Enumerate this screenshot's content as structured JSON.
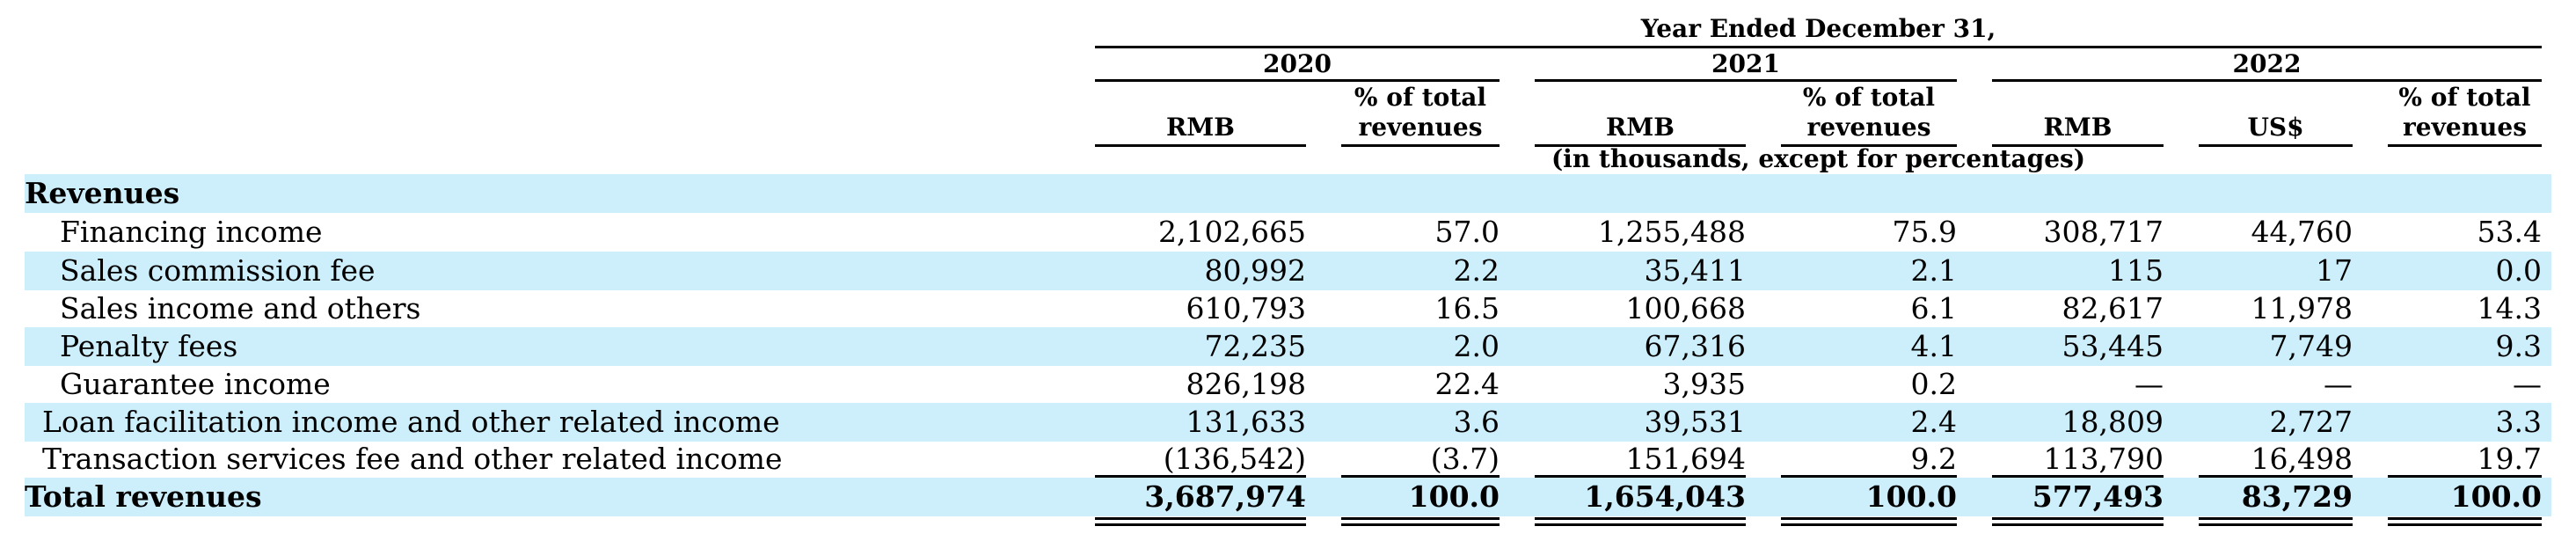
{
  "header": {
    "period_title": "Year Ended December 31,",
    "years": [
      "2020",
      "2021",
      "2022"
    ],
    "col_rmb": "RMB",
    "col_usd": "US$",
    "pct_line1": "% of total",
    "pct_line2": "revenues",
    "units_note": "(in thousands, except for percentages)"
  },
  "section_title": "Revenues",
  "rows": [
    {
      "label": "Financing income",
      "values": [
        "2,102,665",
        "57.0",
        "1,255,488",
        "75.9",
        "308,717",
        "44,760",
        "53.4"
      ]
    },
    {
      "label": "Sales commission fee",
      "values": [
        "80,992",
        "2.2",
        "35,411",
        "2.1",
        "115",
        "17",
        "0.0"
      ]
    },
    {
      "label": "Sales income and others",
      "values": [
        "610,793",
        "16.5",
        "100,668",
        "6.1",
        "82,617",
        "11,978",
        "14.3"
      ]
    },
    {
      "label": "Penalty fees",
      "values": [
        "72,235",
        "2.0",
        "67,316",
        "4.1",
        "53,445",
        "7,749",
        "9.3"
      ]
    },
    {
      "label": "Guarantee income",
      "values": [
        "826,198",
        "22.4",
        "3,935",
        "0.2",
        "—",
        "—",
        "—"
      ]
    },
    {
      "label": "Loan facilitation income and other related income",
      "values": [
        "131,633",
        "3.6",
        "39,531",
        "2.4",
        "18,809",
        "2,727",
        "3.3"
      ]
    },
    {
      "label": "Transaction services fee and other related income",
      "values": [
        "(136,542)",
        "(3.7)",
        "151,694",
        "9.2",
        "113,790",
        "16,498",
        "19.7"
      ]
    }
  ],
  "total": {
    "label": "Total revenues",
    "values": [
      "3,687,974",
      "100.0",
      "1,654,043",
      "100.0",
      "577,493",
      "83,729",
      "100.0"
    ]
  }
}
